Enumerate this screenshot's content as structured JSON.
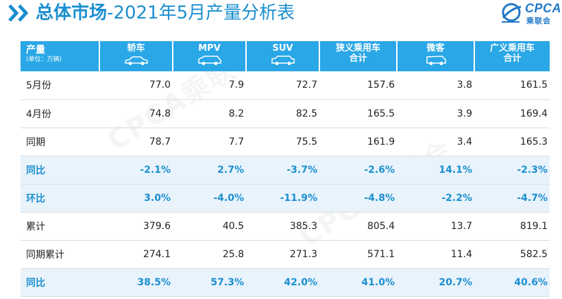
{
  "title": {
    "prefix": "总体市场",
    "suffix": "-2021年5月产量分析表"
  },
  "logo": {
    "text": "CPCA",
    "subtext": "乘联会"
  },
  "watermark": "CPCA乘联会",
  "colors": {
    "accent": "#1b8fd0",
    "header_bg": "#2aa7e6",
    "highlight_row_bg": "#e9f3fb"
  },
  "table": {
    "corner_label": "产量",
    "corner_unit": "(单位：万辆)",
    "columns": [
      {
        "line1": "轿车",
        "line2": "",
        "icon": "sedan-icon"
      },
      {
        "line1": "MPV",
        "line2": "",
        "icon": "mpv-icon"
      },
      {
        "line1": "SUV",
        "line2": "",
        "icon": "suv-icon"
      },
      {
        "line1": "狭义乘用车",
        "line2": "合计",
        "icon": ""
      },
      {
        "line1": "微客",
        "line2": "",
        "icon": "minivan-icon"
      },
      {
        "line1": "广义乘用车",
        "line2": "合计",
        "icon": ""
      }
    ],
    "rows": [
      {
        "label": "5月份",
        "values": [
          "77.0",
          "7.9",
          "72.7",
          "157.6",
          "3.8",
          "161.5"
        ],
        "highlight": false
      },
      {
        "label": "4月份",
        "values": [
          "74.8",
          "8.2",
          "82.5",
          "165.5",
          "3.9",
          "169.4"
        ],
        "highlight": false
      },
      {
        "label": "同期",
        "values": [
          "78.7",
          "7.7",
          "75.5",
          "161.9",
          "3.4",
          "165.3"
        ],
        "highlight": false
      },
      {
        "label": "同比",
        "values": [
          "-2.1%",
          "2.7%",
          "-3.7%",
          "-2.6%",
          "14.1%",
          "-2.3%"
        ],
        "highlight": true
      },
      {
        "label": "环比",
        "values": [
          "3.0%",
          "-4.0%",
          "-11.9%",
          "-4.8%",
          "-2.2%",
          "-4.7%"
        ],
        "highlight": true
      },
      {
        "label": "累计",
        "values": [
          "379.6",
          "40.5",
          "385.3",
          "805.4",
          "13.7",
          "819.1"
        ],
        "highlight": false
      },
      {
        "label": "同期累计",
        "values": [
          "274.1",
          "25.8",
          "271.3",
          "571.1",
          "11.4",
          "582.5"
        ],
        "highlight": false
      },
      {
        "label": "同比",
        "values": [
          "38.5%",
          "57.3%",
          "42.0%",
          "41.0%",
          "20.7%",
          "40.6%"
        ],
        "highlight": true
      }
    ]
  }
}
